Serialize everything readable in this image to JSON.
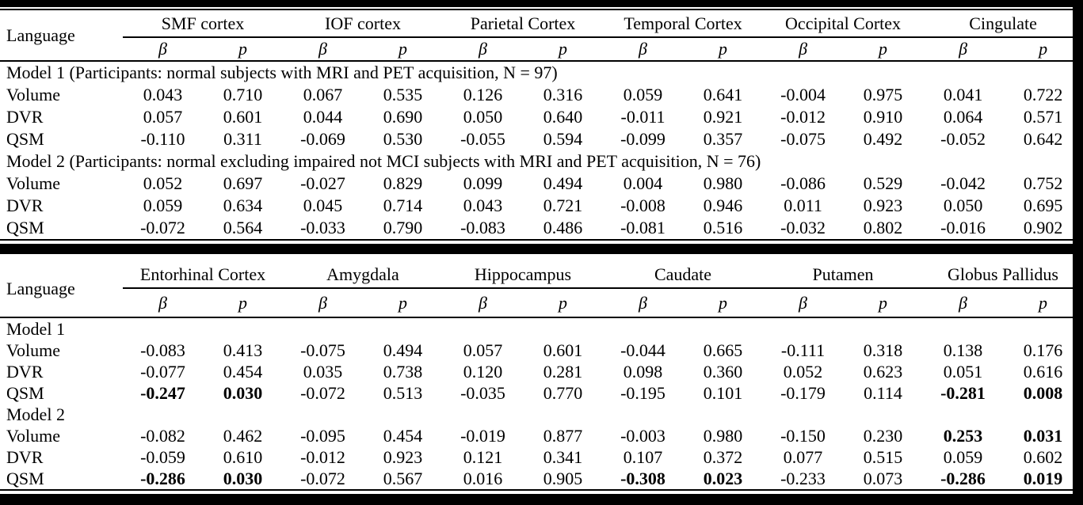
{
  "page": {
    "paper_color": "#ffffff",
    "ink_color": "#000000"
  },
  "tables": [
    {
      "name": "cortical-table",
      "row_header": "Language",
      "groups": [
        "SMF cortex",
        "IOF cortex",
        "Parietal Cortex",
        "Temporal Cortex",
        "Occipital Cortex",
        "Cingulate"
      ],
      "subcols": [
        "β",
        "p"
      ],
      "sections": [
        {
          "heading": "Model 1 (Participants: normal subjects with MRI and PET acquisition, N = 97)",
          "rows": [
            {
              "label": "Volume",
              "values": [
                "0.043",
                "0.710",
                "0.067",
                "0.535",
                "0.126",
                "0.316",
                "0.059",
                "0.641",
                "-0.004",
                "0.975",
                "0.041",
                "0.722"
              ],
              "bold": []
            },
            {
              "label": "DVR",
              "values": [
                "0.057",
                "0.601",
                "0.044",
                "0.690",
                "0.050",
                "0.640",
                "-0.011",
                "0.921",
                "-0.012",
                "0.910",
                "0.064",
                "0.571"
              ],
              "bold": []
            },
            {
              "label": "QSM",
              "values": [
                "-0.110",
                "0.311",
                "-0.069",
                "0.530",
                "-0.055",
                "0.594",
                "-0.099",
                "0.357",
                "-0.075",
                "0.492",
                "-0.052",
                "0.642"
              ],
              "bold": []
            }
          ]
        },
        {
          "heading": "Model 2 (Participants: normal excluding impaired not MCI subjects with MRI and PET acquisition, N = 76)",
          "rows": [
            {
              "label": "Volume",
              "values": [
                "0.052",
                "0.697",
                "-0.027",
                "0.829",
                "0.099",
                "0.494",
                "0.004",
                "0.980",
                "-0.086",
                "0.529",
                "-0.042",
                "0.752"
              ],
              "bold": []
            },
            {
              "label": "DVR",
              "values": [
                "0.059",
                "0.634",
                "0.045",
                "0.714",
                "0.043",
                "0.721",
                "-0.008",
                "0.946",
                "0.011",
                "0.923",
                "0.050",
                "0.695"
              ],
              "bold": []
            },
            {
              "label": "QSM",
              "values": [
                "-0.072",
                "0.564",
                "-0.033",
                "0.790",
                "-0.083",
                "0.486",
                "-0.081",
                "0.516",
                "-0.032",
                "0.802",
                "-0.016",
                "0.902"
              ],
              "bold": []
            }
          ]
        }
      ]
    },
    {
      "name": "subcortical-table",
      "row_header": "Language",
      "groups": [
        "Entorhinal Cortex",
        "Amygdala",
        "Hippocampus",
        "Caudate",
        "Putamen",
        "Globus Pallidus"
      ],
      "subcols": [
        "β",
        "p"
      ],
      "sections": [
        {
          "heading": "Model 1",
          "rows": [
            {
              "label": "Volume",
              "values": [
                "-0.083",
                "0.413",
                "-0.075",
                "0.494",
                "0.057",
                "0.601",
                "-0.044",
                "0.665",
                "-0.111",
                "0.318",
                "0.138",
                "0.176"
              ],
              "bold": []
            },
            {
              "label": "DVR",
              "values": [
                "-0.077",
                "0.454",
                "0.035",
                "0.738",
                "0.120",
                "0.281",
                "0.098",
                "0.360",
                "0.052",
                "0.623",
                "0.051",
                "0.616"
              ],
              "bold": []
            },
            {
              "label": "QSM",
              "values": [
                "-0.247",
                "0.030",
                "-0.072",
                "0.513",
                "-0.035",
                "0.770",
                "-0.195",
                "0.101",
                "-0.179",
                "0.114",
                "-0.281",
                "0.008"
              ],
              "bold": [
                0,
                1,
                10,
                11
              ]
            }
          ]
        },
        {
          "heading": "Model 2",
          "rows": [
            {
              "label": "Volume",
              "values": [
                "-0.082",
                "0.462",
                "-0.095",
                "0.454",
                "-0.019",
                "0.877",
                "-0.003",
                "0.980",
                "-0.150",
                "0.230",
                "0.253",
                "0.031"
              ],
              "bold": [
                10,
                11
              ]
            },
            {
              "label": "DVR",
              "values": [
                "-0.059",
                "0.610",
                "-0.012",
                "0.923",
                "0.121",
                "0.341",
                "0.107",
                "0.372",
                "0.077",
                "0.515",
                "0.059",
                "0.602"
              ],
              "bold": []
            },
            {
              "label": "QSM",
              "values": [
                "-0.286",
                "0.030",
                "-0.072",
                "0.567",
                "0.016",
                "0.905",
                "-0.308",
                "0.023",
                "-0.233",
                "0.073",
                "-0.286",
                "0.019"
              ],
              "bold": [
                0,
                1,
                6,
                7,
                10,
                11
              ]
            }
          ]
        }
      ]
    }
  ]
}
